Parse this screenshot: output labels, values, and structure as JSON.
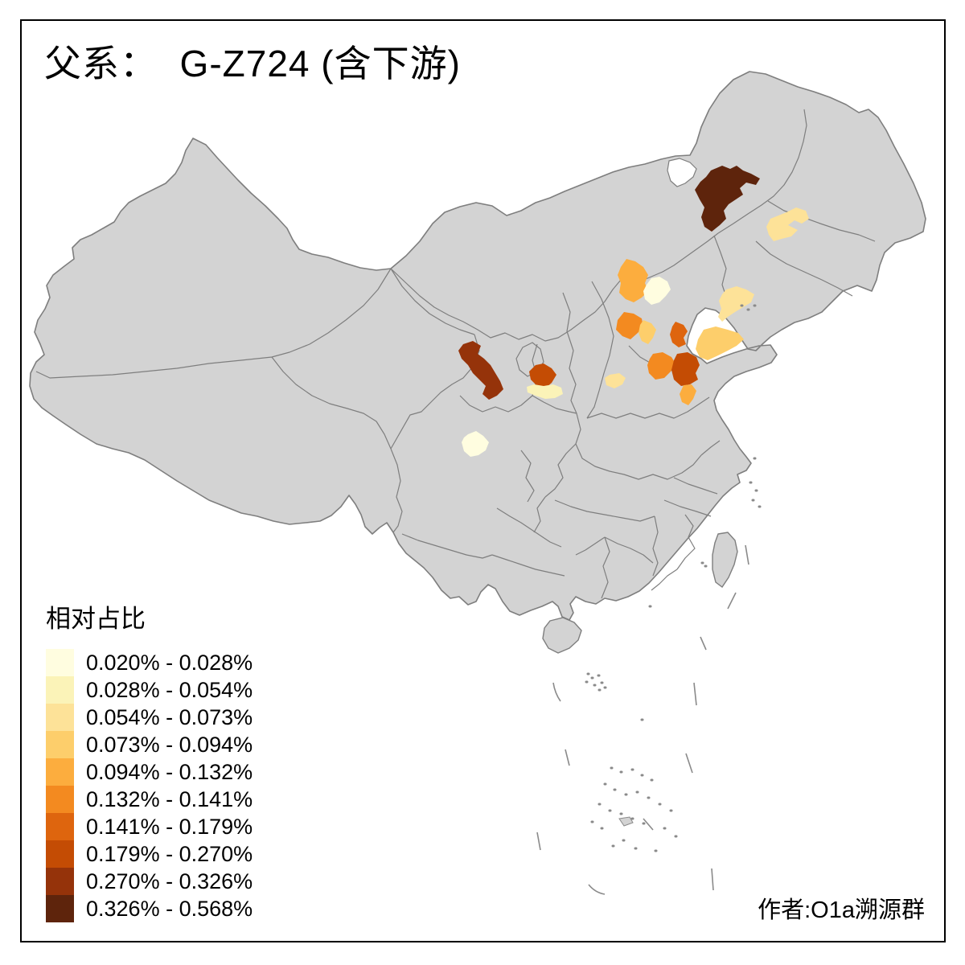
{
  "title": {
    "text": "父系：  G-Z724 (含下游)"
  },
  "legend": {
    "title": "相对占比",
    "items": [
      {
        "label": "0.020% - 0.028%",
        "color": "#FFFDE0"
      },
      {
        "label": "0.028% - 0.054%",
        "color": "#FBF3B8"
      },
      {
        "label": "0.054% - 0.073%",
        "color": "#FDE298"
      },
      {
        "label": "0.073% - 0.094%",
        "color": "#FDCE6B"
      },
      {
        "label": "0.094% - 0.132%",
        "color": "#FCAD3E"
      },
      {
        "label": "0.132% - 0.141%",
        "color": "#F38A20"
      },
      {
        "label": "0.141% - 0.179%",
        "color": "#DE650E"
      },
      {
        "label": "0.179% - 0.270%",
        "color": "#C44C04"
      },
      {
        "label": "0.270% - 0.326%",
        "color": "#95330A"
      },
      {
        "label": "0.326% - 0.568%",
        "color": "#5E240C"
      }
    ]
  },
  "attribution": {
    "text": "作者:O1a溯源群"
  },
  "map": {
    "background": "#FFFFFF",
    "land_fill": "#D3D3D3",
    "boundary_stroke": "#7E7E7E",
    "water_fill": "#FFFFFF",
    "regions": [
      {
        "id": "hulunbuir-area",
        "bin": 10
      },
      {
        "id": "qiqihar-area",
        "bin": 3
      },
      {
        "id": "zhangjiakou-area",
        "bin": 5
      },
      {
        "id": "beijing-area",
        "bin": 1
      },
      {
        "id": "liaodong-coast-area",
        "bin": 3
      },
      {
        "id": "shijiazhuang-area",
        "bin": 6
      },
      {
        "id": "hengshui-area",
        "bin": 4
      },
      {
        "id": "dongying-area",
        "bin": 7
      },
      {
        "id": "yantai-area",
        "bin": 4
      },
      {
        "id": "jinan-area",
        "bin": 6
      },
      {
        "id": "weifang-area",
        "bin": 8
      },
      {
        "id": "jining-area",
        "bin": 5
      },
      {
        "id": "southwest-shanxi-area",
        "bin": 3
      },
      {
        "id": "lanzhou-dingxi-area",
        "bin": 9
      },
      {
        "id": "guyuan-area",
        "bin": 8
      },
      {
        "id": "pingliang-area",
        "bin": 2
      },
      {
        "id": "chengdu-area",
        "bin": 1
      }
    ]
  },
  "chart_data": {
    "type": "choropleth_map",
    "title": "父系：  G-Z724 (含下游)",
    "legend_title": "相对占比",
    "legend_position": "bottom-left",
    "base_land_color": "#D3D3D3",
    "bins": [
      {
        "range": "0.020% - 0.028%",
        "color": "#FFFDE0"
      },
      {
        "range": "0.028% - 0.054%",
        "color": "#FBF3B8"
      },
      {
        "range": "0.054% - 0.073%",
        "color": "#FDE298"
      },
      {
        "range": "0.073% - 0.094%",
        "color": "#FDCE6B"
      },
      {
        "range": "0.094% - 0.132%",
        "color": "#FCAD3E"
      },
      {
        "range": "0.132% - 0.141%",
        "color": "#F38A20"
      },
      {
        "range": "0.141% - 0.179%",
        "color": "#DE650E"
      },
      {
        "range": "0.179% - 0.270%",
        "color": "#C44C04"
      },
      {
        "range": "0.270% - 0.326%",
        "color": "#95330A"
      },
      {
        "range": "0.326% - 0.568%",
        "color": "#5E240C"
      }
    ],
    "highlighted_regions": [
      {
        "id": "hulunbuir-area",
        "bin": 10,
        "range": "0.326% - 0.568%"
      },
      {
        "id": "qiqihar-area",
        "bin": 3,
        "range": "0.054% - 0.073%"
      },
      {
        "id": "zhangjiakou-area",
        "bin": 5,
        "range": "0.094% - 0.132%"
      },
      {
        "id": "beijing-area",
        "bin": 1,
        "range": "0.020% - 0.028%"
      },
      {
        "id": "liaodong-coast-area",
        "bin": 3,
        "range": "0.054% - 0.073%"
      },
      {
        "id": "shijiazhuang-area",
        "bin": 6,
        "range": "0.132% - 0.141%"
      },
      {
        "id": "hengshui-area",
        "bin": 4,
        "range": "0.073% - 0.094%"
      },
      {
        "id": "dongying-area",
        "bin": 7,
        "range": "0.141% - 0.179%"
      },
      {
        "id": "yantai-area",
        "bin": 4,
        "range": "0.073% - 0.094%"
      },
      {
        "id": "jinan-area",
        "bin": 6,
        "range": "0.132% - 0.141%"
      },
      {
        "id": "weifang-area",
        "bin": 8,
        "range": "0.179% - 0.270%"
      },
      {
        "id": "jining-area",
        "bin": 5,
        "range": "0.094% - 0.132%"
      },
      {
        "id": "southwest-shanxi-area",
        "bin": 3,
        "range": "0.054% - 0.073%"
      },
      {
        "id": "lanzhou-dingxi-area",
        "bin": 9,
        "range": "0.270% - 0.326%"
      },
      {
        "id": "guyuan-area",
        "bin": 8,
        "range": "0.179% - 0.270%"
      },
      {
        "id": "pingliang-area",
        "bin": 2,
        "range": "0.028% - 0.054%"
      },
      {
        "id": "chengdu-area",
        "bin": 1,
        "range": "0.020% - 0.028%"
      }
    ],
    "attribution": "作者:O1a溯源群"
  }
}
